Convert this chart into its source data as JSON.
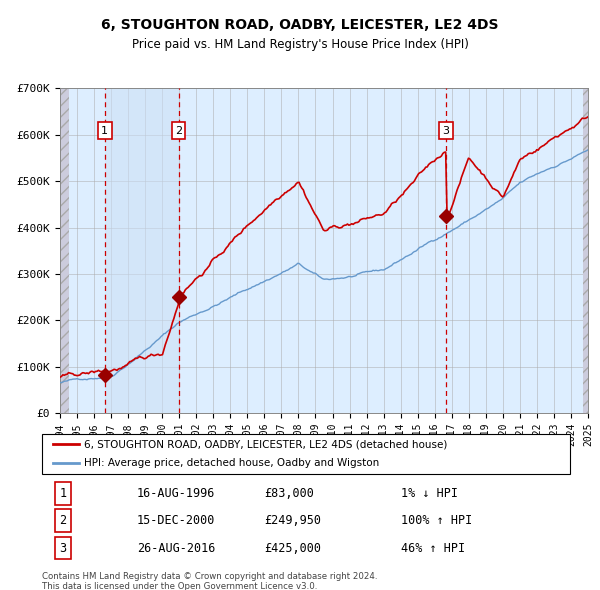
{
  "title": "6, STOUGHTON ROAD, OADBY, LEICESTER, LE2 4DS",
  "subtitle": "Price paid vs. HM Land Registry's House Price Index (HPI)",
  "ylim": [
    0,
    700000
  ],
  "xlim_year": [
    1994,
    2025
  ],
  "yticks": [
    0,
    100000,
    200000,
    300000,
    400000,
    500000,
    600000,
    700000
  ],
  "ytick_labels": [
    "£0",
    "£100K",
    "£200K",
    "£300K",
    "£400K",
    "£500K",
    "£600K",
    "£700K"
  ],
  "red_line_color": "#cc0000",
  "blue_line_color": "#6699cc",
  "marker_color": "#990000",
  "dashed_line_color": "#cc0000",
  "bg_chart": "#ddeeff",
  "bg_hatch_color": "#ccccdd",
  "bg_white": "#ffffff",
  "grid_color": "#aaaaaa",
  "legend_label_red": "6, STOUGHTON ROAD, OADBY, LEICESTER, LE2 4DS (detached house)",
  "legend_label_blue": "HPI: Average price, detached house, Oadby and Wigston",
  "sale_dates": [
    1996.625,
    2000.958,
    2016.652
  ],
  "sale_prices": [
    83000,
    249950,
    425000
  ],
  "sale_labels": [
    "1",
    "2",
    "3"
  ],
  "table_rows": [
    [
      "1",
      "16-AUG-1996",
      "£83,000",
      "1% ↓ HPI"
    ],
    [
      "2",
      "15-DEC-2000",
      "£249,950",
      "100% ↑ HPI"
    ],
    [
      "3",
      "26-AUG-2016",
      "£425,000",
      "46% ↑ HPI"
    ]
  ],
  "footnote1": "Contains HM Land Registry data © Crown copyright and database right 2024.",
  "footnote2": "This data is licensed under the Open Government Licence v3.0."
}
